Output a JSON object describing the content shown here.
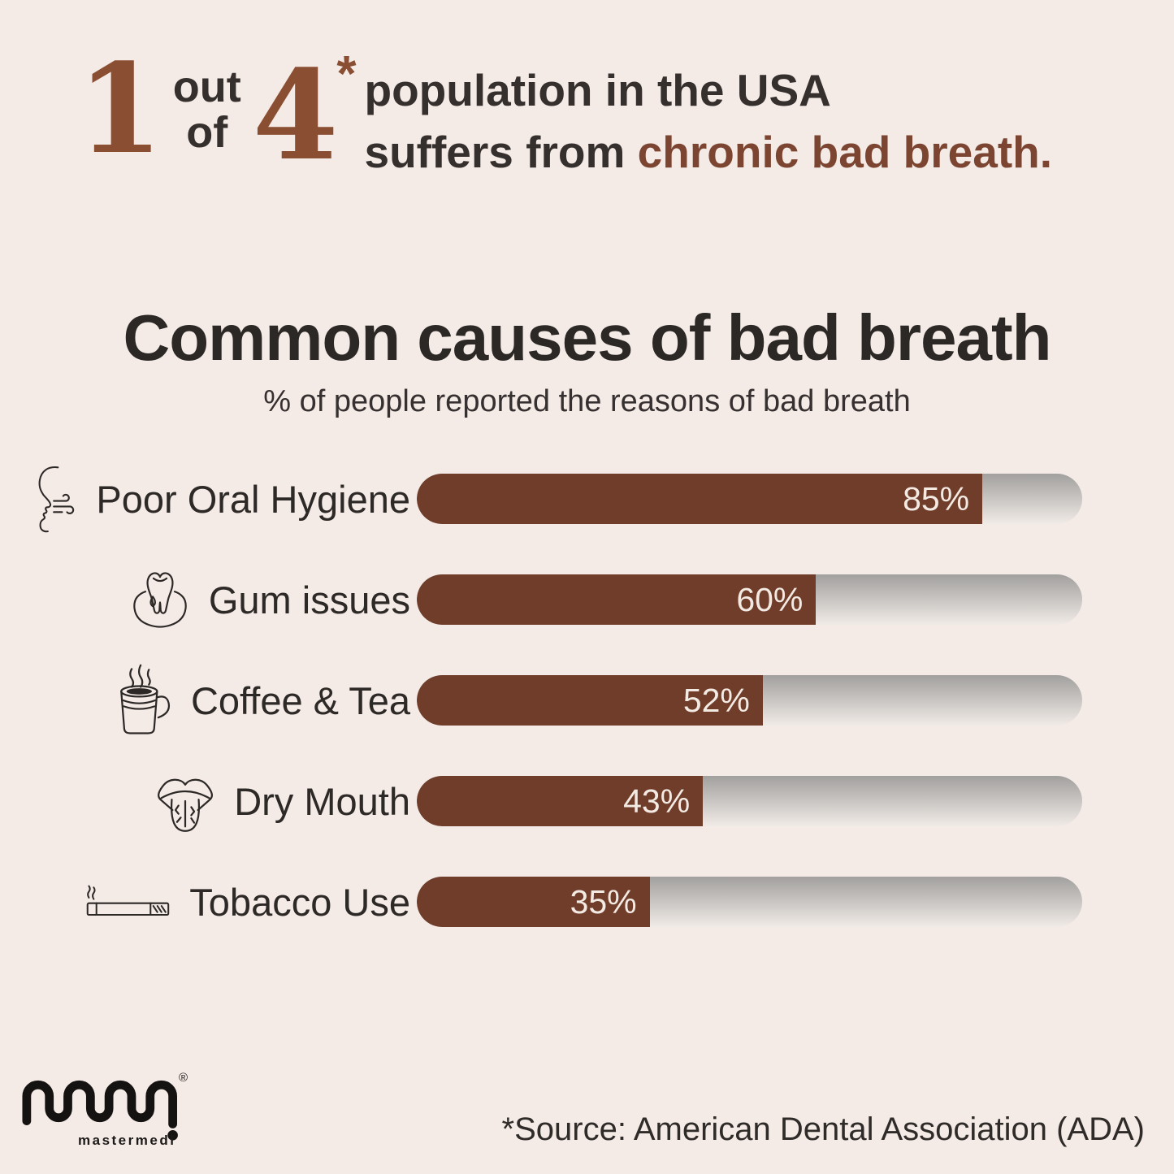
{
  "colors": {
    "background": "#f4eae6",
    "bar_fill": "#6f3d2a",
    "accent_brown": "#7b4531",
    "digit_brown": "#8a4e33",
    "dark_text": "#2b2826",
    "bar_value_text": "#f3eae3",
    "track_gradient_top": "#a2a09e",
    "track_gradient_bottom": "#f1ebe7"
  },
  "headline": {
    "big_number_1": "1",
    "out": "out",
    "of": "of",
    "big_number_4": "4",
    "asterisk": "*",
    "line1": "population in the USA",
    "line2_prefix": "suffers from ",
    "line2_accent": "chronic bad breath."
  },
  "chart_data": {
    "type": "bar",
    "orientation": "horizontal",
    "title": "Common causes of bad breath",
    "subtitle": "% of people reported the reasons of bad breath",
    "categories": [
      "Poor Oral Hygiene",
      "Gum issues",
      "Coffee & Tea",
      "Dry Mouth",
      "Tobacco Use"
    ],
    "values": [
      85,
      60,
      52,
      43,
      35
    ],
    "value_labels": [
      "85%",
      "60%",
      "52%",
      "43%",
      "35%"
    ],
    "icons": [
      "bad-breath-face-icon",
      "tooth-gum-icon",
      "coffee-cup-icon",
      "dry-tongue-icon",
      "cigarette-icon"
    ],
    "xlim": [
      0,
      100
    ],
    "grid": false,
    "legend": false
  },
  "footer": {
    "logo_text": "mastermedi",
    "registered": "®",
    "source": "*Source: American Dental Association (ADA)"
  }
}
